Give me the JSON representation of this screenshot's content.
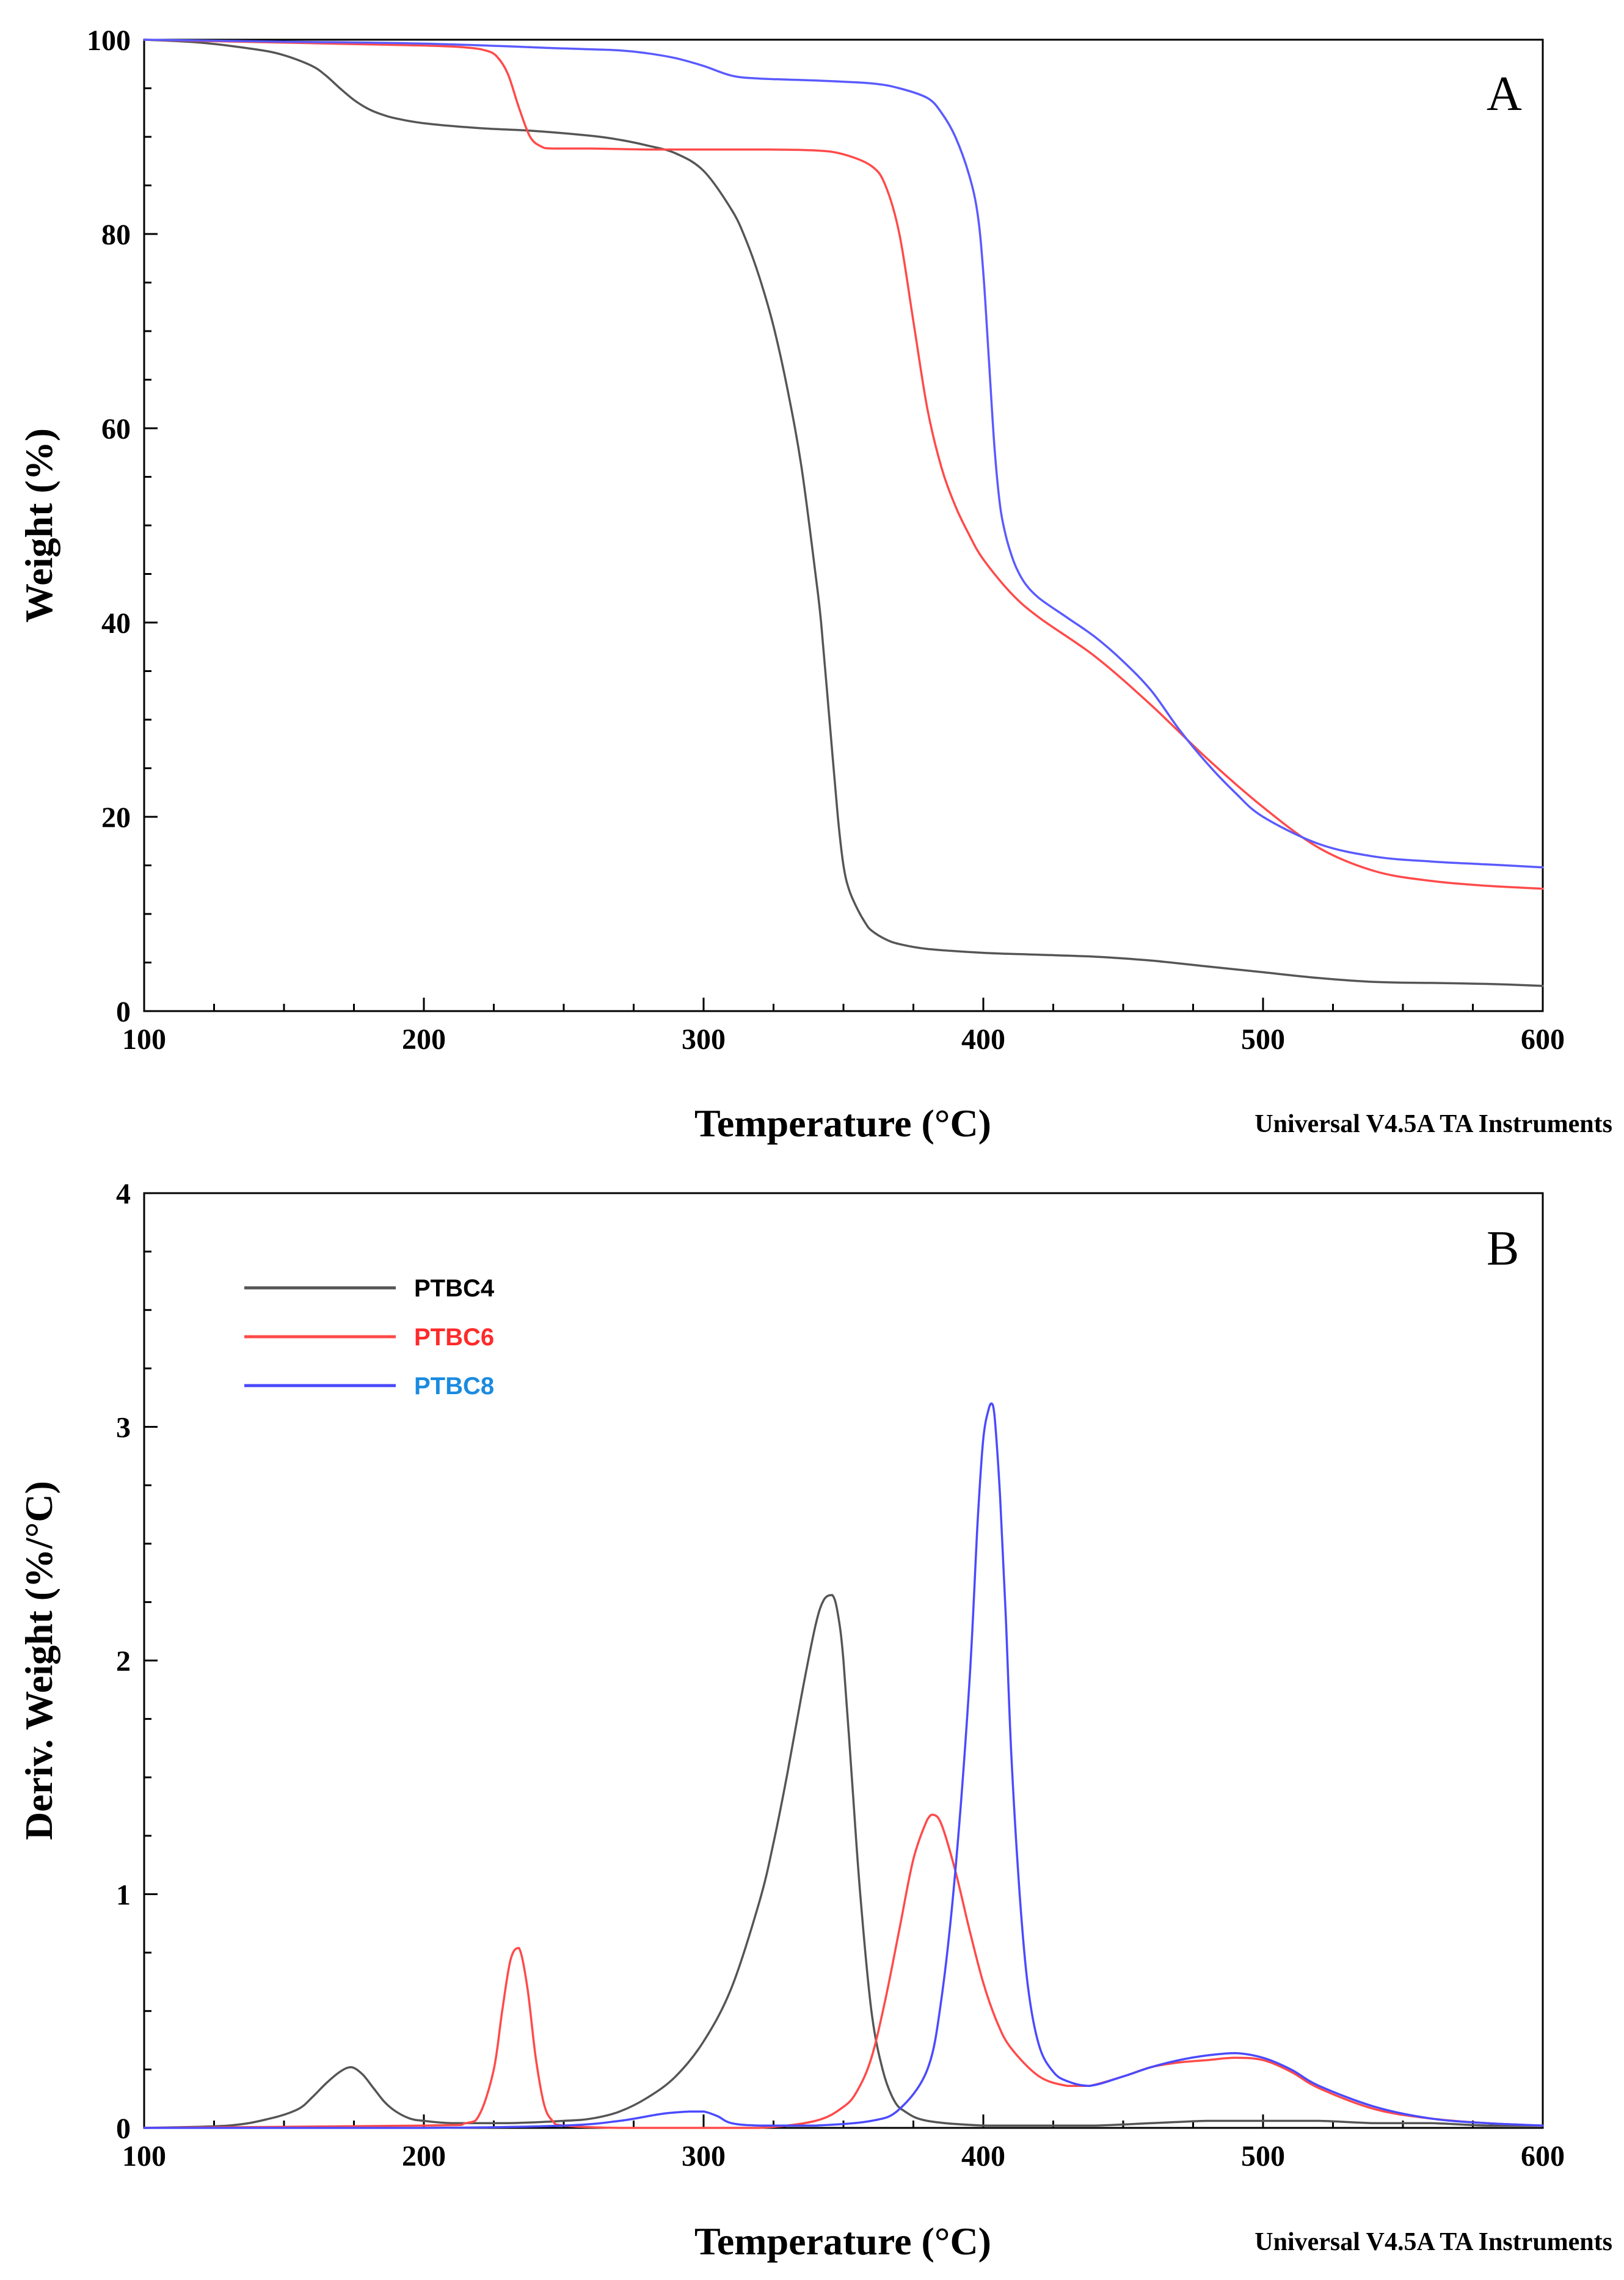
{
  "chart_data": [
    {
      "panel": "A",
      "type": "line",
      "xlabel": "Temperature (°C)",
      "ylabel": "Weight (%)",
      "note": "Universal V4.5A TA Instruments",
      "xlim": [
        100,
        600
      ],
      "ylim": [
        0,
        100
      ],
      "xticks": [
        100,
        200,
        300,
        400,
        500,
        600
      ],
      "yticks": [
        0,
        20,
        40,
        60,
        80,
        100
      ],
      "xtick_labels": [
        "100",
        "200",
        "300",
        "400",
        "500",
        "600"
      ],
      "ytick_labels": [
        "0",
        "20",
        "40",
        "60",
        "80",
        "100"
      ],
      "legend": false,
      "series": [
        {
          "name": "PTBC4",
          "color": "#555555",
          "x": [
            100,
            120,
            140,
            150,
            160,
            165,
            170,
            175,
            180,
            185,
            190,
            200,
            220,
            240,
            260,
            270,
            280,
            290,
            300,
            310,
            315,
            320,
            325,
            330,
            335,
            340,
            342,
            345,
            348,
            350,
            352,
            355,
            358,
            360,
            365,
            370,
            380,
            400,
            420,
            440,
            460,
            480,
            500,
            520,
            540,
            560,
            580,
            600
          ],
          "y": [
            100,
            99.7,
            99.0,
            98.4,
            97.3,
            96.3,
            95.0,
            93.8,
            92.9,
            92.3,
            91.9,
            91.4,
            90.9,
            90.6,
            90.1,
            89.7,
            89.1,
            88.3,
            86.5,
            82.5,
            79.5,
            75.5,
            70.5,
            64.0,
            56.0,
            45.0,
            40.0,
            30.0,
            20.0,
            15.0,
            12.5,
            10.5,
            9.0,
            8.3,
            7.4,
            6.9,
            6.4,
            6.0,
            5.8,
            5.6,
            5.2,
            4.6,
            4.0,
            3.4,
            3.0,
            2.9,
            2.8,
            2.6
          ]
        },
        {
          "name": "PTBC6",
          "color": "#ff4a4a",
          "x": [
            100,
            150,
            200,
            215,
            222,
            226,
            230,
            234,
            238,
            242,
            246,
            260,
            280,
            300,
            320,
            340,
            350,
            360,
            365,
            370,
            375,
            380,
            385,
            390,
            395,
            400,
            410,
            420,
            440,
            460,
            480,
            500,
            520,
            540,
            560,
            580,
            600
          ],
          "y": [
            100,
            99.7,
            99.4,
            99.2,
            98.9,
            98.3,
            96.5,
            93.0,
            90.0,
            89.0,
            88.8,
            88.8,
            88.7,
            88.7,
            88.7,
            88.6,
            88.2,
            87.0,
            85.0,
            80.0,
            71.0,
            62.0,
            56.0,
            52.0,
            49.0,
            46.5,
            43.0,
            40.5,
            36.5,
            31.5,
            26.0,
            21.0,
            16.8,
            14.4,
            13.4,
            12.9,
            12.6
          ]
        },
        {
          "name": "PTBC8",
          "color": "#5a5aff",
          "x": [
            100,
            150,
            200,
            250,
            270,
            280,
            290,
            300,
            310,
            320,
            340,
            360,
            370,
            380,
            385,
            390,
            395,
            398,
            400,
            402,
            404,
            406,
            408,
            410,
            412,
            415,
            420,
            430,
            440,
            450,
            460,
            470,
            480,
            490,
            500,
            520,
            540,
            560,
            580,
            600
          ],
          "y": [
            100,
            99.8,
            99.6,
            99.1,
            98.9,
            98.6,
            98.1,
            97.3,
            96.3,
            96.0,
            95.8,
            95.5,
            95.0,
            94.0,
            92.5,
            90.0,
            86.0,
            82.0,
            76.0,
            67.0,
            58.0,
            52.0,
            49.0,
            47.0,
            45.5,
            44.0,
            42.5,
            40.5,
            38.5,
            36.0,
            33.0,
            29.0,
            25.5,
            22.5,
            20.0,
            17.2,
            15.9,
            15.4,
            15.1,
            14.8
          ]
        }
      ]
    },
    {
      "panel": "B",
      "type": "line",
      "xlabel": "Temperature (°C)",
      "ylabel": "Deriv. Weight (%/°C)",
      "note": "Universal V4.5A TA Instruments",
      "xlim": [
        100,
        600
      ],
      "ylim": [
        0,
        4
      ],
      "xticks": [
        100,
        200,
        300,
        400,
        500,
        600
      ],
      "yticks": [
        0,
        1,
        2,
        3,
        4
      ],
      "xtick_labels": [
        "100",
        "200",
        "300",
        "400",
        "500",
        "600"
      ],
      "ytick_labels": [
        "0",
        "1",
        "2",
        "3",
        "4"
      ],
      "legend": true,
      "legend_position": "top-left",
      "series": [
        {
          "name": "PTBC4",
          "color": "#555555",
          "label_color": "#000000",
          "x": [
            100,
            130,
            145,
            155,
            160,
            165,
            170,
            174,
            178,
            182,
            186,
            190,
            195,
            200,
            210,
            230,
            250,
            260,
            270,
            280,
            290,
            300,
            310,
            320,
            325,
            330,
            335,
            340,
            343,
            346,
            348,
            350,
            353,
            356,
            360,
            364,
            368,
            372,
            380,
            400,
            420,
            440,
            460,
            480,
            500,
            520,
            540,
            560,
            580,
            600
          ],
          "y": [
            0,
            0.01,
            0.04,
            0.08,
            0.13,
            0.19,
            0.24,
            0.26,
            0.23,
            0.17,
            0.11,
            0.07,
            0.04,
            0.03,
            0.02,
            0.02,
            0.03,
            0.04,
            0.07,
            0.13,
            0.22,
            0.37,
            0.6,
            0.97,
            1.22,
            1.52,
            1.85,
            2.15,
            2.26,
            2.28,
            2.2,
            2.0,
            1.5,
            1.0,
            0.5,
            0.25,
            0.12,
            0.07,
            0.03,
            0.01,
            0.01,
            0.01,
            0.02,
            0.03,
            0.03,
            0.03,
            0.02,
            0.02,
            0.01,
            0.01
          ]
        },
        {
          "name": "PTBC6",
          "color": "#ff4a4a",
          "label_color": "#ff2a2a",
          "x": [
            100,
            200,
            215,
            220,
            225,
            228,
            231,
            234,
            237,
            240,
            243,
            246,
            250,
            270,
            300,
            320,
            340,
            350,
            355,
            360,
            365,
            370,
            375,
            380,
            382,
            385,
            390,
            395,
            400,
            405,
            410,
            420,
            430,
            438,
            450,
            460,
            470,
            480,
            490,
            500,
            510,
            520,
            540,
            560,
            580,
            600
          ],
          "y": [
            0,
            0.01,
            0.02,
            0.06,
            0.25,
            0.5,
            0.72,
            0.77,
            0.6,
            0.3,
            0.1,
            0.03,
            0.01,
            0.0,
            0.0,
            0.0,
            0.03,
            0.09,
            0.16,
            0.3,
            0.55,
            0.85,
            1.15,
            1.32,
            1.34,
            1.3,
            1.1,
            0.85,
            0.62,
            0.45,
            0.34,
            0.22,
            0.18,
            0.18,
            0.22,
            0.26,
            0.28,
            0.29,
            0.3,
            0.29,
            0.24,
            0.17,
            0.08,
            0.04,
            0.02,
            0.01
          ]
        },
        {
          "name": "PTBC8",
          "color": "#4a4aff",
          "label_color": "#1a8be0",
          "x": [
            100,
            200,
            250,
            270,
            285,
            295,
            300,
            305,
            310,
            320,
            340,
            360,
            370,
            380,
            385,
            390,
            395,
            398,
            400,
            402,
            403,
            404,
            406,
            408,
            410,
            413,
            416,
            420,
            425,
            430,
            438,
            450,
            460,
            470,
            480,
            490,
            500,
            510,
            520,
            540,
            560,
            580,
            600
          ],
          "y": [
            0,
            0.0,
            0.01,
            0.03,
            0.06,
            0.07,
            0.07,
            0.05,
            0.02,
            0.01,
            0.01,
            0.03,
            0.08,
            0.25,
            0.55,
            1.1,
            1.9,
            2.6,
            2.95,
            3.08,
            3.1,
            3.05,
            2.7,
            2.2,
            1.6,
            1.0,
            0.6,
            0.35,
            0.24,
            0.2,
            0.18,
            0.22,
            0.26,
            0.29,
            0.31,
            0.32,
            0.3,
            0.25,
            0.18,
            0.09,
            0.04,
            0.02,
            0.01
          ]
        }
      ]
    }
  ]
}
